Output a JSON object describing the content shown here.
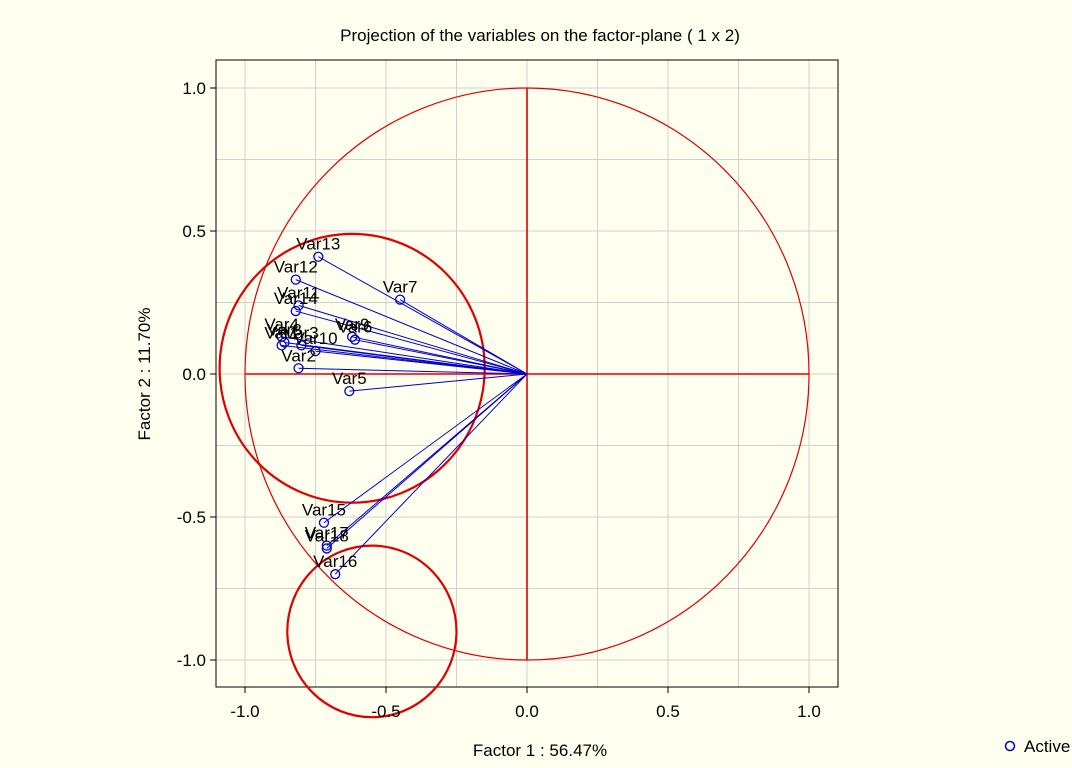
{
  "chart_data": {
    "type": "scatter",
    "title": "Projection of the variables on the factor-plane (  1 x   2)",
    "xlabel": "Factor 1 : 56.47%",
    "ylabel": "Factor 2 : 11.70%",
    "xlim": [
      -1.1,
      1.1
    ],
    "ylim": [
      -1.1,
      1.1
    ],
    "xticks": [
      "-1.0",
      "-0.5",
      "0.0",
      "0.5",
      "1.0"
    ],
    "yticks": [
      "1.0",
      "0.5",
      "0.0",
      "-0.5",
      "-1.0"
    ],
    "xtick_values": [
      -1.0,
      -0.5,
      0.0,
      0.5,
      1.0
    ],
    "ytick_values": [
      1.0,
      0.5,
      0.0,
      -0.5,
      -1.0
    ],
    "grid": true,
    "legend": {
      "position": "bottom-right",
      "label": "Active"
    },
    "colors": {
      "points": "#0000cc",
      "reference": "#e00000",
      "grid": "#d0d0d0"
    },
    "unit_circle": {
      "cx": 0,
      "cy": 0,
      "r": 1
    },
    "highlight_circles": [
      {
        "cx": -0.62,
        "cy": 0.02,
        "r": 0.47
      },
      {
        "cx": -0.55,
        "cy": -0.9,
        "r": 0.3
      }
    ],
    "points": [
      {
        "label": "Var13",
        "x": -0.74,
        "y": 0.41
      },
      {
        "label": "Var12",
        "x": -0.82,
        "y": 0.33
      },
      {
        "label": "Var7",
        "x": -0.45,
        "y": 0.26
      },
      {
        "label": "Var11",
        "x": -0.81,
        "y": 0.24
      },
      {
        "label": "Var14",
        "x": -0.82,
        "y": 0.22
      },
      {
        "label": "Var4",
        "x": -0.87,
        "y": 0.13
      },
      {
        "label": "Var8",
        "x": -0.86,
        "y": 0.11
      },
      {
        "label": "Var9",
        "x": -0.62,
        "y": 0.13
      },
      {
        "label": "Var6",
        "x": -0.61,
        "y": 0.12
      },
      {
        "label": "Var3",
        "x": -0.8,
        "y": 0.1
      },
      {
        "label": "Var10",
        "x": -0.75,
        "y": 0.08
      },
      {
        "label": "Var1",
        "x": -0.87,
        "y": 0.1
      },
      {
        "label": "Var2",
        "x": -0.81,
        "y": 0.02
      },
      {
        "label": "Var5",
        "x": -0.63,
        "y": -0.06
      },
      {
        "label": "Var15",
        "x": -0.72,
        "y": -0.52
      },
      {
        "label": "Var17",
        "x": -0.71,
        "y": -0.6
      },
      {
        "label": "Var18",
        "x": -0.71,
        "y": -0.61
      },
      {
        "label": "Var16",
        "x": -0.68,
        "y": -0.7
      }
    ]
  }
}
